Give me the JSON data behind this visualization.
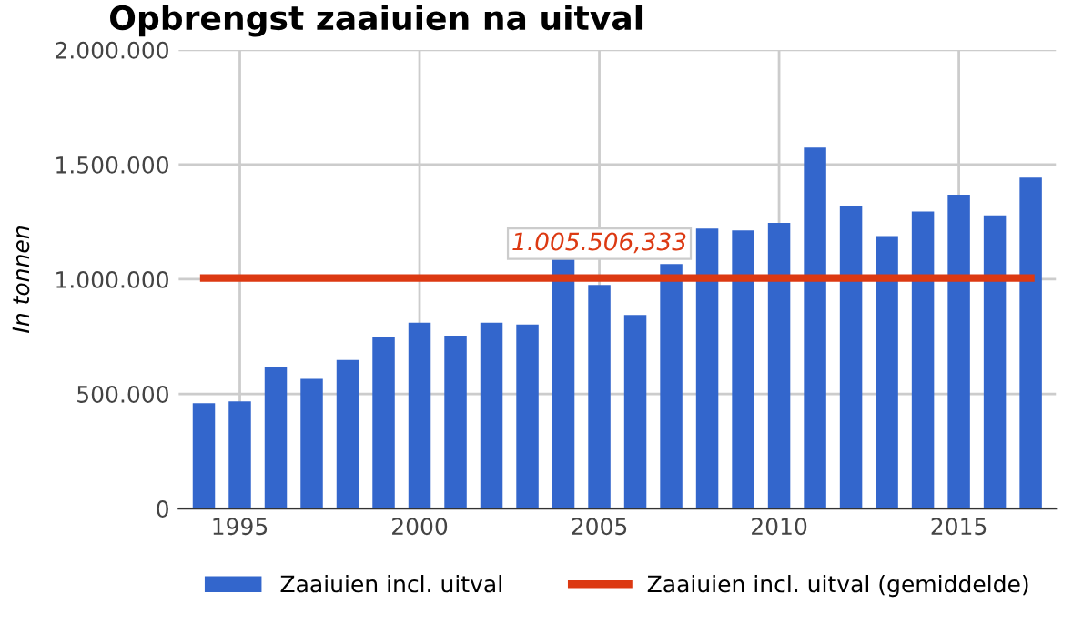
{
  "chart_data": {
    "type": "bar",
    "title": "Opbrengst zaaiuien na uitval",
    "ylabel": "In tonnen",
    "x": [
      1994,
      1995,
      1996,
      1997,
      1998,
      1999,
      2000,
      2001,
      2002,
      2003,
      2004,
      2005,
      2006,
      2007,
      2008,
      2009,
      2010,
      2011,
      2012,
      2013,
      2014,
      2015,
      2016,
      2017
    ],
    "series": [
      {
        "name": "Zaaiuien incl. uitval",
        "color": "#3366cc",
        "values": [
          459000,
          467000,
          615000,
          566000,
          648000,
          746000,
          811000,
          754000,
          811000,
          803000,
          1093000,
          975000,
          844000,
          1066000,
          1221000,
          1213000,
          1246000,
          1574000,
          1320000,
          1188000,
          1295000,
          1369000,
          1279000,
          1443000
        ]
      },
      {
        "name": "Zaaiuien incl. uitval (gemiddelde)",
        "type": "line",
        "color": "#dc3912",
        "values": [
          1005506.333,
          1005506.333,
          1005506.333,
          1005506.333,
          1005506.333,
          1005506.333,
          1005506.333,
          1005506.333,
          1005506.333,
          1005506.333,
          1005506.333,
          1005506.333,
          1005506.333,
          1005506.333,
          1005506.333,
          1005506.333,
          1005506.333,
          1005506.333,
          1005506.333,
          1005506.333,
          1005506.333,
          1005506.333,
          1005506.333,
          1005506.333
        ]
      }
    ],
    "annotations": [
      {
        "text": "1.005.506,333",
        "x": 2005,
        "y": 1005506.333
      }
    ],
    "xlim": [
      1993.3,
      2017.7
    ],
    "xticks": [
      1995,
      2000,
      2005,
      2010,
      2015
    ],
    "ylim": [
      0,
      2000000
    ],
    "yticks": [
      {
        "value": 0,
        "label": "0"
      },
      {
        "value": 500000,
        "label": "500.000"
      },
      {
        "value": 1000000,
        "label": "1.000.000"
      },
      {
        "value": 1500000,
        "label": "1.500.000"
      },
      {
        "value": 2000000,
        "label": "2.000.000"
      }
    ],
    "grid": true,
    "legend": "bottom"
  }
}
